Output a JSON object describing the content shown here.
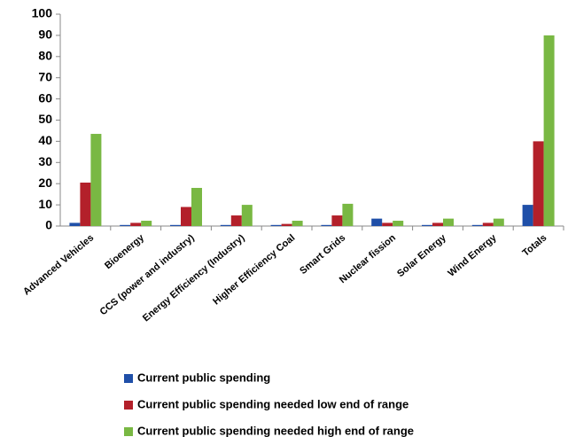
{
  "chart_data": {
    "type": "bar",
    "categories": [
      "Advanced Vehicles",
      "Bioenergy",
      "CCS (power and industry)",
      "Energy Efficiency (Industry)",
      "Higher Efficiency Coal",
      "Smart Grids",
      "Nuclear fission",
      "Solar Energy",
      "Wind Energy",
      "Totals"
    ],
    "series": [
      {
        "name": "Current public spending",
        "color": "#1f4fa8",
        "values": [
          1.5,
          0.5,
          0.5,
          0.5,
          0.5,
          0.5,
          3.5,
          0.5,
          0.5,
          10
        ]
      },
      {
        "name": "Current public spending needed low end of range",
        "color": "#b3202a",
        "values": [
          20.5,
          1.5,
          9,
          5,
          1,
          5,
          1.5,
          1.5,
          1.5,
          40
        ]
      },
      {
        "name": "Current public spending needed high end of range",
        "color": "#79b843",
        "values": [
          43.5,
          2.5,
          18,
          10,
          2.5,
          10.5,
          2.5,
          3.5,
          3.5,
          90
        ]
      }
    ],
    "ylim": [
      0,
      100
    ],
    "yticks": [
      0,
      10,
      20,
      30,
      40,
      50,
      60,
      70,
      80,
      90,
      100
    ],
    "grid": false
  }
}
